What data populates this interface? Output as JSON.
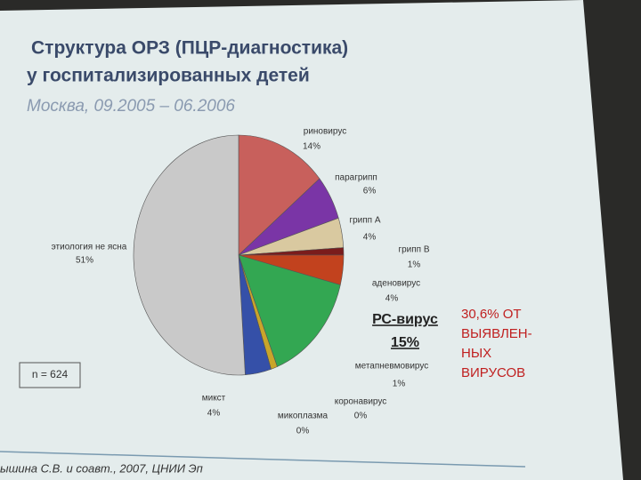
{
  "chart_data": {
    "type": "pie",
    "title": "Структура ОРЗ (ПЦР-диагностика)",
    "subtitle": "у госпитализированных детей",
    "period": "Москва, 09.2005 – 06.2006",
    "categories": [
      "риновирус",
      "парагрипп",
      "грипп А",
      "грипп В",
      "аденовирус",
      "РС-вирус",
      "метапневмовирус",
      "коронавирус",
      "микоплазма",
      "микст",
      "этиология не ясна"
    ],
    "values": [
      14,
      6,
      4,
      1,
      4,
      15,
      1,
      0,
      0,
      4,
      51
    ],
    "value_labels": [
      "14%",
      "6%",
      "4%",
      "1%",
      "4%",
      "15%",
      "1%",
      "0%",
      "0%",
      "4%",
      "51%"
    ],
    "colors": [
      "#c8605c",
      "#7a35a6",
      "#d9c9a0",
      "#7a1c1c",
      "#c2421e",
      "#33a752",
      "#c9a52a",
      "#8a7a40",
      "#a09040",
      "#3550a8",
      "#c9c9c9"
    ],
    "annotations": [
      "n = 624",
      "30,6% ОТ",
      "ВЫЯВЛЕН-",
      "НЫХ",
      "ВИРУСОВ"
    ],
    "footer": "ышина С.В. и соавт., 2007, ЦНИИ Эп"
  }
}
